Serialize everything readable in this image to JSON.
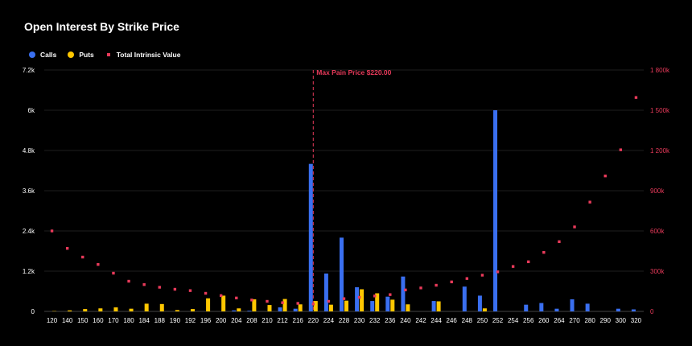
{
  "chart_data": {
    "type": "bar",
    "title": "Open Interest By Strike Price",
    "legend": [
      {
        "name": "Calls",
        "color": "#3a6ff0",
        "shape": "circle"
      },
      {
        "name": "Puts",
        "color": "#ffc700",
        "shape": "circle"
      },
      {
        "name": "Total Intrinsic Value",
        "color": "#e83a5a",
        "shape": "square"
      }
    ],
    "categories": [
      "120",
      "140",
      "150",
      "160",
      "170",
      "180",
      "184",
      "188",
      "190",
      "192",
      "196",
      "200",
      "204",
      "208",
      "210",
      "212",
      "216",
      "220",
      "224",
      "228",
      "230",
      "232",
      "236",
      "240",
      "242",
      "244",
      "246",
      "248",
      "250",
      "252",
      "254",
      "256",
      "260",
      "264",
      "270",
      "280",
      "290",
      "300",
      "320"
    ],
    "series": [
      {
        "name": "Calls",
        "color": "#3a6ff0",
        "axis": "left",
        "values": [
          0,
          0,
          0,
          0,
          0,
          0,
          0,
          0,
          0,
          0,
          0,
          0,
          30,
          20,
          0,
          120,
          80,
          4400,
          1130,
          2200,
          720,
          310,
          440,
          1040,
          0,
          310,
          0,
          740,
          470,
          6000,
          0,
          200,
          250,
          80,
          360,
          230,
          0,
          80,
          60
        ]
      },
      {
        "name": "Puts",
        "color": "#ffc700",
        "axis": "left",
        "values": [
          10,
          30,
          70,
          90,
          120,
          80,
          230,
          220,
          40,
          70,
          390,
          470,
          90,
          360,
          190,
          370,
          210,
          310,
          200,
          320,
          660,
          540,
          350,
          210,
          0,
          300,
          0,
          0,
          90,
          0,
          0,
          0,
          0,
          0,
          0,
          0,
          0,
          0,
          0
        ]
      },
      {
        "name": "Total Intrinsic Value",
        "color": "#e83a5a",
        "axis": "right",
        "type": "scatter",
        "values": [
          600000,
          470000,
          405000,
          350000,
          285000,
          225000,
          200000,
          180000,
          165000,
          155000,
          135000,
          118000,
          100000,
          85000,
          75000,
          65000,
          60000,
          55000,
          75000,
          95000,
          105000,
          115000,
          125000,
          160000,
          175000,
          195000,
          220000,
          245000,
          270000,
          295000,
          335000,
          370000,
          440000,
          520000,
          630000,
          815000,
          1010000,
          1205000,
          1595000
        ]
      }
    ],
    "y_left": {
      "min": 0,
      "max": 7200,
      "ticks": [
        0,
        1200,
        2400,
        3600,
        4800,
        6000,
        7200
      ],
      "tick_labels": [
        "0",
        "1.2k",
        "2.4k",
        "3.6k",
        "4.8k",
        "6k",
        "7.2k"
      ]
    },
    "y_right": {
      "min": 0,
      "max": 1800000,
      "ticks": [
        0,
        300000,
        600000,
        900000,
        1200000,
        1500000,
        1800000
      ],
      "tick_labels": [
        "0",
        "300k",
        "600k",
        "900k",
        "1 200k",
        "1 500k",
        "1 800k"
      ]
    },
    "annotation": {
      "label": "Max Pain Price $220.00",
      "category": "220",
      "color": "#e83a5a"
    },
    "grid": true,
    "legend_position": "top-left"
  }
}
